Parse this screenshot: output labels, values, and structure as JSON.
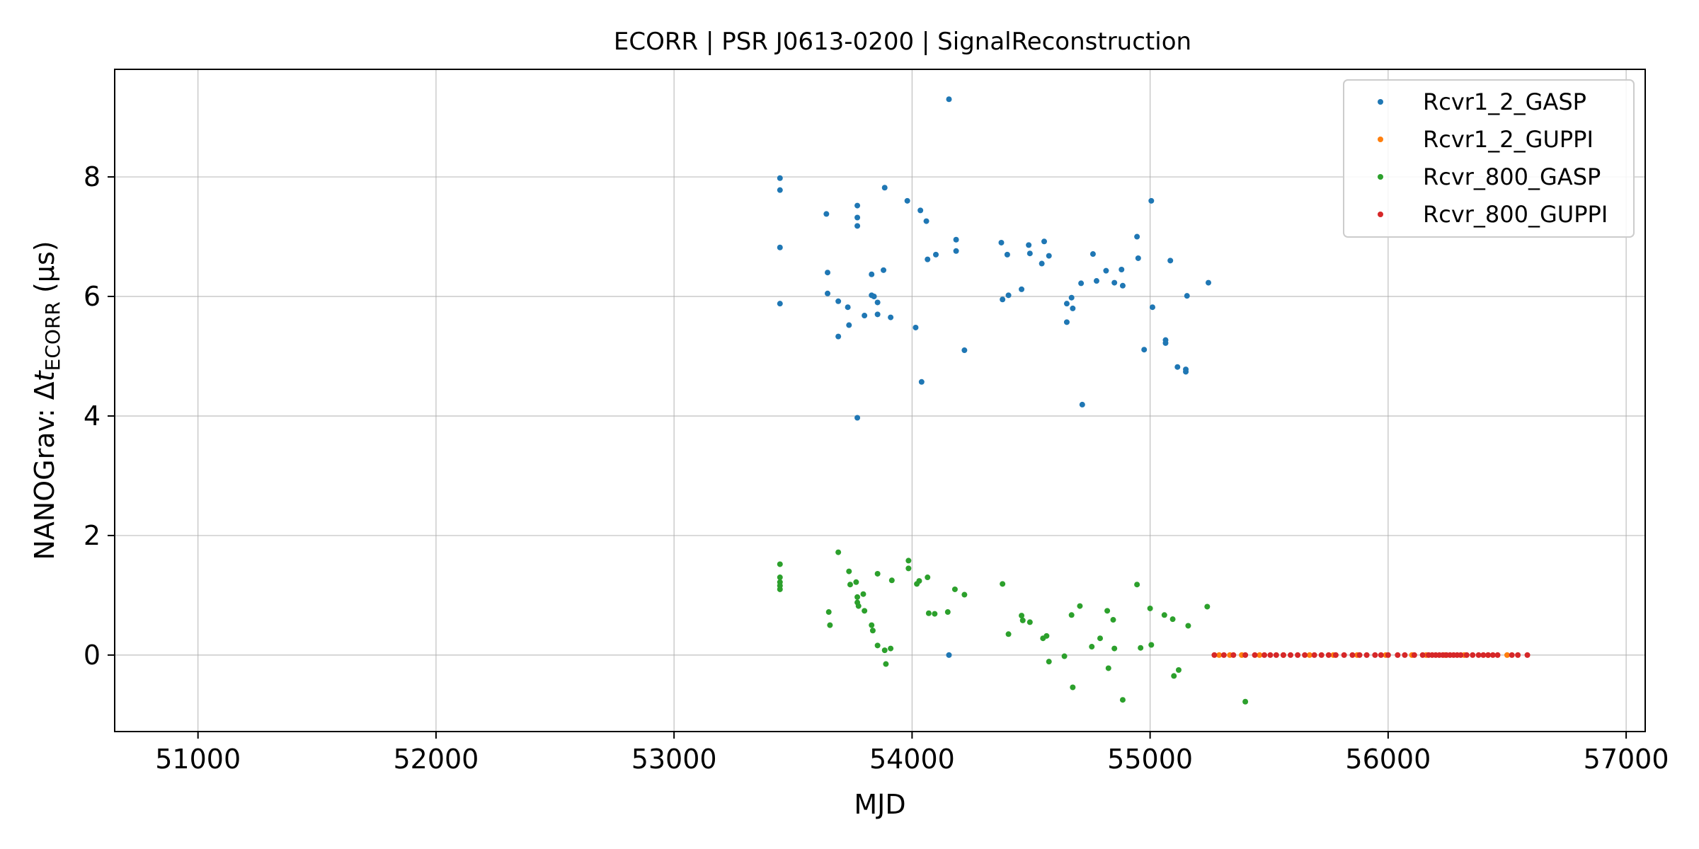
{
  "chart_data": {
    "type": "scatter",
    "title": "ECORR | PSR J0613-0200 | SignalReconstruction",
    "xlabel": "MJD",
    "ylabel_prefix": "NANOGrav: Δ",
    "ylabel_var": "t",
    "ylabel_sub": "ECORR",
    "ylabel_unit": " (μs)",
    "xlim": [
      50650,
      57080
    ],
    "ylim": [
      -1.28,
      9.8
    ],
    "xticks": [
      51000,
      52000,
      53000,
      54000,
      55000,
      56000,
      57000
    ],
    "yticks": [
      0,
      2,
      4,
      6,
      8
    ],
    "grid": true,
    "legend_position": "top-right",
    "series": [
      {
        "name": "Rcvr1_2_GASP",
        "color": "#1f77b4",
        "points": [
          [
            53445,
            7.98
          ],
          [
            53445,
            7.78
          ],
          [
            53445,
            6.82
          ],
          [
            53445,
            5.88
          ],
          [
            53640,
            7.38
          ],
          [
            53645,
            6.4
          ],
          [
            53645,
            6.05
          ],
          [
            53690,
            5.92
          ],
          [
            53690,
            5.33
          ],
          [
            53730,
            5.82
          ],
          [
            53735,
            5.52
          ],
          [
            53770,
            7.52
          ],
          [
            53770,
            7.32
          ],
          [
            53770,
            7.18
          ],
          [
            53770,
            3.97
          ],
          [
            53800,
            5.68
          ],
          [
            53830,
            6.37
          ],
          [
            53830,
            6.02
          ],
          [
            53840,
            6.0
          ],
          [
            53855,
            5.9
          ],
          [
            53855,
            5.7
          ],
          [
            53880,
            6.44
          ],
          [
            53885,
            7.82
          ],
          [
            53910,
            5.65
          ],
          [
            53980,
            7.6
          ],
          [
            54015,
            5.48
          ],
          [
            54035,
            7.44
          ],
          [
            54040,
            4.57
          ],
          [
            54060,
            7.26
          ],
          [
            54065,
            6.62
          ],
          [
            54100,
            6.7
          ],
          [
            54155,
            9.3
          ],
          [
            54185,
            6.95
          ],
          [
            54185,
            6.76
          ],
          [
            54220,
            5.1
          ],
          [
            54375,
            6.9
          ],
          [
            54380,
            5.95
          ],
          [
            54400,
            6.7
          ],
          [
            54405,
            6.02
          ],
          [
            54460,
            6.12
          ],
          [
            54490,
            6.86
          ],
          [
            54495,
            6.72
          ],
          [
            54545,
            6.55
          ],
          [
            54555,
            6.92
          ],
          [
            54575,
            6.68
          ],
          [
            54650,
            5.88
          ],
          [
            54650,
            5.57
          ],
          [
            54670,
            5.98
          ],
          [
            54675,
            5.8
          ],
          [
            54710,
            6.22
          ],
          [
            54715,
            4.19
          ],
          [
            54760,
            6.71
          ],
          [
            54775,
            6.26
          ],
          [
            54815,
            6.43
          ],
          [
            54850,
            6.23
          ],
          [
            54880,
            6.45
          ],
          [
            54885,
            6.18
          ],
          [
            54945,
            7.0
          ],
          [
            54950,
            6.64
          ],
          [
            54975,
            5.11
          ],
          [
            55005,
            7.6
          ],
          [
            55010,
            5.82
          ],
          [
            55065,
            5.27
          ],
          [
            55065,
            5.22
          ],
          [
            55085,
            6.6
          ],
          [
            55115,
            4.82
          ],
          [
            55150,
            4.78
          ],
          [
            55150,
            4.74
          ],
          [
            55155,
            6.01
          ],
          [
            55245,
            6.23
          ],
          [
            54155,
            0.0
          ]
        ]
      },
      {
        "name": "Rcvr1_2_GUPPI",
        "color": "#ff7f0e",
        "points": [
          [
            55290,
            0.0
          ],
          [
            55335,
            0.0
          ],
          [
            55385,
            0.0
          ],
          [
            55460,
            0.0
          ],
          [
            55560,
            0.0
          ],
          [
            55670,
            0.0
          ],
          [
            55770,
            0.0
          ],
          [
            55870,
            0.0
          ],
          [
            55990,
            0.0
          ],
          [
            56100,
            0.0
          ],
          [
            56160,
            0.0
          ],
          [
            56240,
            0.0
          ],
          [
            56320,
            0.0
          ],
          [
            56420,
            0.0
          ],
          [
            56500,
            0.0
          ]
        ]
      },
      {
        "name": "Rcvr_800_GASP",
        "color": "#2ca02c",
        "points": [
          [
            53445,
            1.52
          ],
          [
            53445,
            1.3
          ],
          [
            53445,
            1.22
          ],
          [
            53445,
            1.16
          ],
          [
            53445,
            1.1
          ],
          [
            53650,
            0.72
          ],
          [
            53655,
            0.5
          ],
          [
            53690,
            1.72
          ],
          [
            53735,
            1.4
          ],
          [
            53740,
            1.18
          ],
          [
            53765,
            1.22
          ],
          [
            53770,
            0.97
          ],
          [
            53770,
            0.88
          ],
          [
            53775,
            0.82
          ],
          [
            53795,
            1.02
          ],
          [
            53800,
            0.74
          ],
          [
            53830,
            0.5
          ],
          [
            53835,
            0.41
          ],
          [
            53855,
            1.36
          ],
          [
            53855,
            0.16
          ],
          [
            53885,
            0.08
          ],
          [
            53890,
            -0.15
          ],
          [
            53910,
            0.11
          ],
          [
            53915,
            1.25
          ],
          [
            53985,
            1.58
          ],
          [
            53985,
            1.45
          ],
          [
            54020,
            1.19
          ],
          [
            54030,
            1.24
          ],
          [
            54065,
            1.3
          ],
          [
            54070,
            0.7
          ],
          [
            54095,
            0.69
          ],
          [
            54150,
            0.72
          ],
          [
            54180,
            1.1
          ],
          [
            54220,
            1.01
          ],
          [
            54380,
            1.19
          ],
          [
            54405,
            0.35
          ],
          [
            54460,
            0.66
          ],
          [
            54465,
            0.58
          ],
          [
            54495,
            0.55
          ],
          [
            54550,
            0.28
          ],
          [
            54565,
            0.32
          ],
          [
            54575,
            -0.11
          ],
          [
            54640,
            -0.02
          ],
          [
            54670,
            0.67
          ],
          [
            54675,
            -0.54
          ],
          [
            54705,
            0.82
          ],
          [
            54755,
            0.14
          ],
          [
            54790,
            0.28
          ],
          [
            54820,
            0.74
          ],
          [
            54825,
            -0.22
          ],
          [
            54845,
            0.59
          ],
          [
            54850,
            0.11
          ],
          [
            54885,
            -0.75
          ],
          [
            54945,
            1.18
          ],
          [
            54960,
            0.12
          ],
          [
            55000,
            0.78
          ],
          [
            55005,
            0.17
          ],
          [
            55060,
            0.67
          ],
          [
            55095,
            0.6
          ],
          [
            55100,
            -0.35
          ],
          [
            55120,
            -0.25
          ],
          [
            55160,
            0.49
          ],
          [
            55240,
            0.81
          ],
          [
            55400,
            -0.78
          ]
        ]
      },
      {
        "name": "Rcvr_800_GUPPI",
        "color": "#d62728",
        "points": [
          [
            55270,
            0.0
          ],
          [
            55310,
            0.0
          ],
          [
            55350,
            0.0
          ],
          [
            55400,
            0.0
          ],
          [
            55440,
            0.0
          ],
          [
            55480,
            0.0
          ],
          [
            55505,
            0.0
          ],
          [
            55530,
            0.0
          ],
          [
            55560,
            0.0
          ],
          [
            55590,
            0.0
          ],
          [
            55620,
            0.0
          ],
          [
            55650,
            0.0
          ],
          [
            55690,
            0.0
          ],
          [
            55720,
            0.0
          ],
          [
            55750,
            0.0
          ],
          [
            55780,
            0.0
          ],
          [
            55815,
            0.0
          ],
          [
            55850,
            0.0
          ],
          [
            55880,
            0.0
          ],
          [
            55910,
            0.0
          ],
          [
            55945,
            0.0
          ],
          [
            55970,
            0.0
          ],
          [
            56000,
            0.0
          ],
          [
            56040,
            0.0
          ],
          [
            56070,
            0.0
          ],
          [
            56110,
            0.0
          ],
          [
            56145,
            0.0
          ],
          [
            56170,
            0.0
          ],
          [
            56185,
            0.0
          ],
          [
            56200,
            0.0
          ],
          [
            56215,
            0.0
          ],
          [
            56230,
            0.0
          ],
          [
            56245,
            0.0
          ],
          [
            56260,
            0.0
          ],
          [
            56275,
            0.0
          ],
          [
            56290,
            0.0
          ],
          [
            56305,
            0.0
          ],
          [
            56330,
            0.0
          ],
          [
            56355,
            0.0
          ],
          [
            56380,
            0.0
          ],
          [
            56400,
            0.0
          ],
          [
            56420,
            0.0
          ],
          [
            56440,
            0.0
          ],
          [
            56460,
            0.0
          ],
          [
            56520,
            0.0
          ],
          [
            56545,
            0.0
          ],
          [
            56585,
            0.0
          ]
        ]
      }
    ]
  }
}
